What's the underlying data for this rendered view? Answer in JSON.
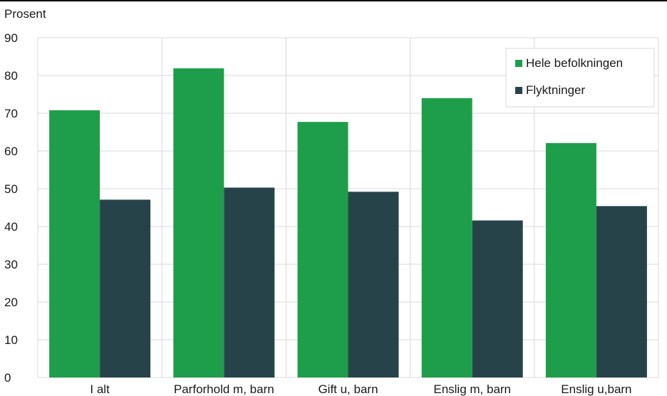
{
  "chart_data": {
    "type": "bar",
    "ylabel": "Prosent",
    "ylim": [
      0,
      90
    ],
    "yticks": [
      0,
      10,
      20,
      30,
      40,
      50,
      60,
      70,
      80,
      90
    ],
    "categories": [
      "I alt",
      "Parforhold m, barn",
      "Gift u, barn",
      "Enslig m, barn",
      "Enslig u,barn"
    ],
    "series": [
      {
        "name": "Hele befolkningen",
        "color": "#1e9e4a",
        "values": [
          70.8,
          81.9,
          67.7,
          74.0,
          62.1
        ]
      },
      {
        "name": "Flyktninger",
        "color": "#27434a",
        "values": [
          47.1,
          50.3,
          49.2,
          41.6,
          45.4
        ]
      }
    ],
    "grid": true,
    "legend_position": "top-right"
  }
}
